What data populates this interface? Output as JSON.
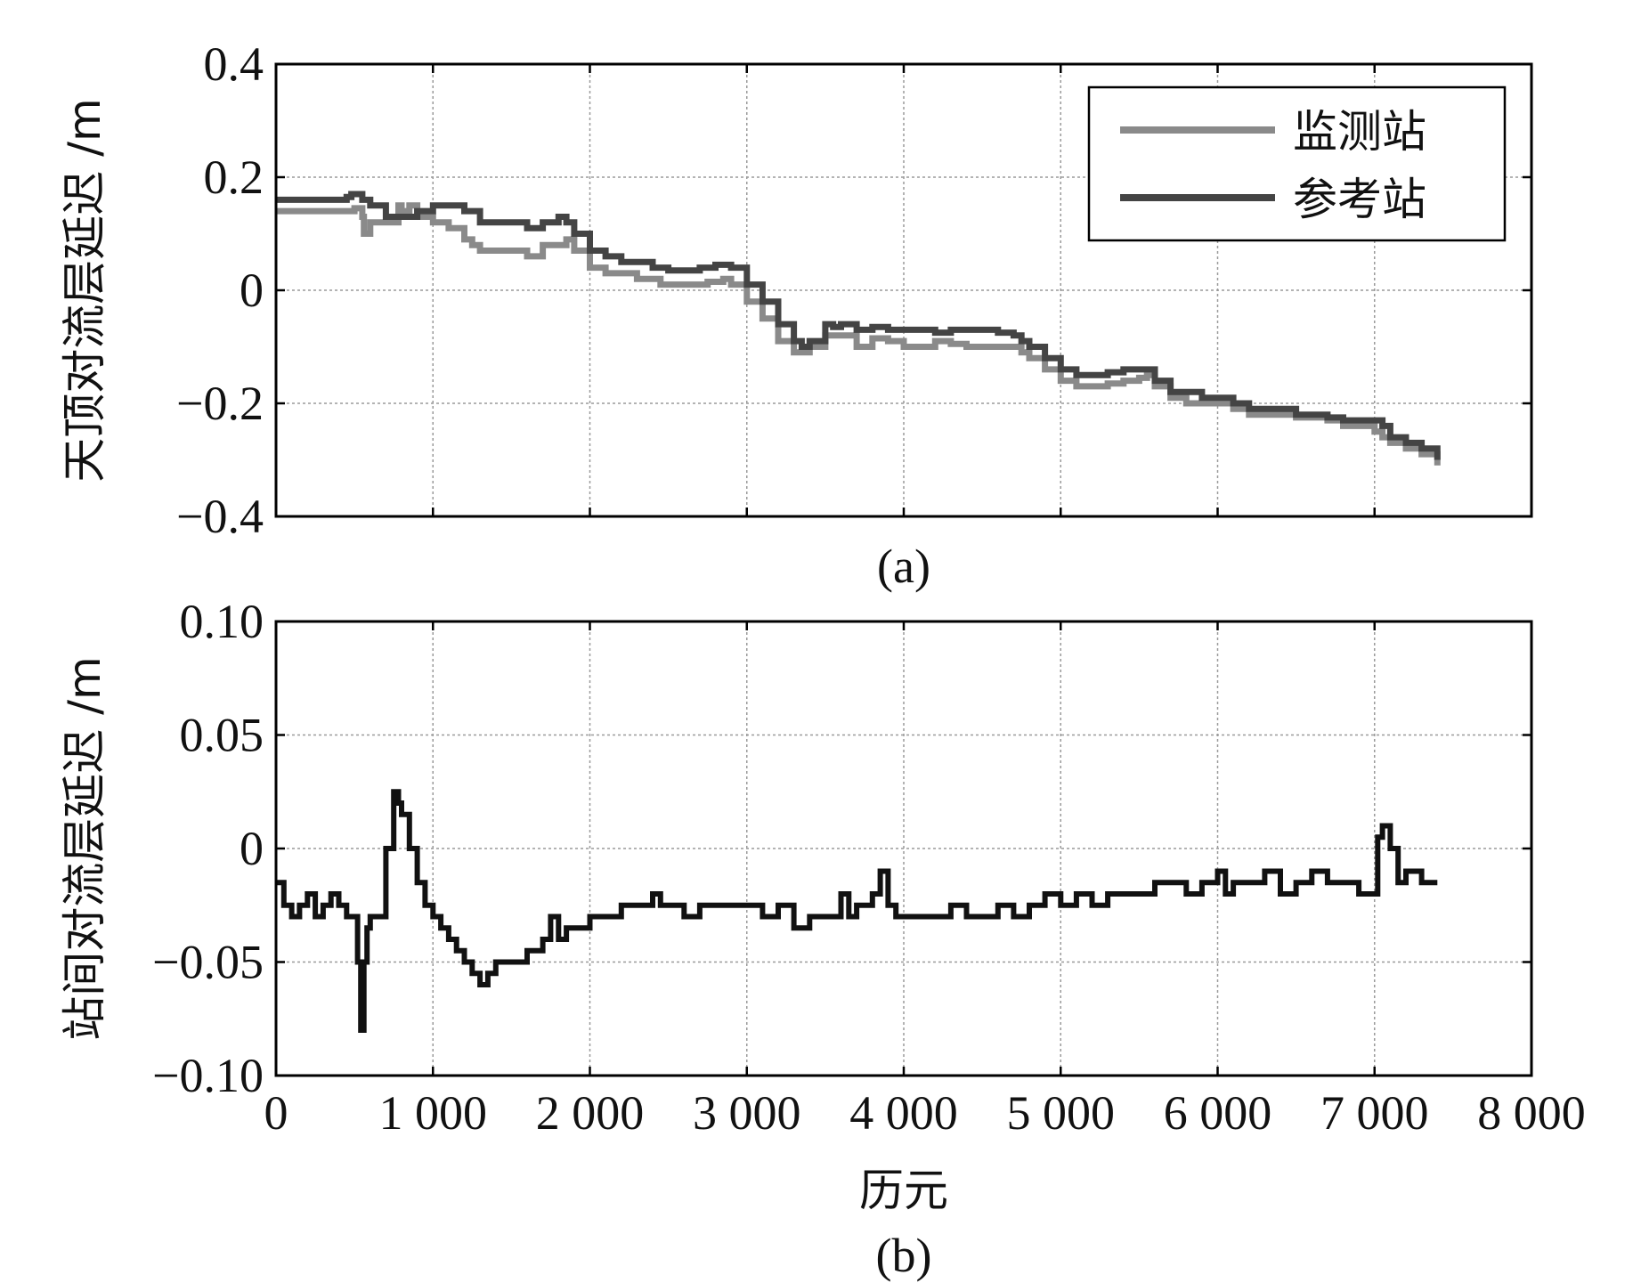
{
  "chart_data": [
    {
      "id": "a",
      "type": "line",
      "caption": "(a)",
      "ylabel": "天顶对流层延迟 /m",
      "xlabel": "",
      "xlim": [
        0,
        8000
      ],
      "ylim": [
        -0.4,
        0.4
      ],
      "xticks": [
        0,
        1000,
        2000,
        3000,
        4000,
        5000,
        6000,
        7000,
        8000
      ],
      "yticks": [
        0.4,
        0.2,
        0,
        -0.2,
        -0.4
      ],
      "ytick_labels": [
        "0.4",
        "0.2",
        "0",
        "−0.2",
        "−0.4"
      ],
      "grid": true,
      "legend_position": "top-right",
      "series": [
        {
          "name": "监测站",
          "color": "#8a8a8a",
          "x": [
            0,
            300,
            500,
            550,
            560,
            600,
            780,
            800,
            850,
            900,
            1000,
            1100,
            1200,
            1250,
            1300,
            1350,
            1500,
            1600,
            1700,
            1800,
            1850,
            1900,
            2000,
            2100,
            2300,
            2450,
            2500,
            2600,
            2750,
            2850,
            2900,
            3000,
            3100,
            3200,
            3300,
            3350,
            3400,
            3500,
            3600,
            3700,
            3800,
            3900,
            4000,
            4100,
            4200,
            4300,
            4400,
            4600,
            4700,
            4750,
            4800,
            4900,
            5000,
            5100,
            5200,
            5300,
            5400,
            5500,
            5550,
            5600,
            5700,
            5800,
            5900,
            6000,
            6100,
            6200,
            6300,
            6500,
            6600,
            6700,
            6800,
            6900,
            7000,
            7050,
            7100,
            7200,
            7300,
            7400
          ],
          "values": [
            0.14,
            0.14,
            0.145,
            0.13,
            0.1,
            0.12,
            0.15,
            0.14,
            0.15,
            0.13,
            0.12,
            0.11,
            0.09,
            0.08,
            0.07,
            0.07,
            0.07,
            0.06,
            0.08,
            0.08,
            0.09,
            0.07,
            0.04,
            0.03,
            0.02,
            0.01,
            0.01,
            0.01,
            0.015,
            0.02,
            0.01,
            -0.02,
            -0.05,
            -0.09,
            -0.11,
            -0.11,
            -0.1,
            -0.08,
            -0.08,
            -0.1,
            -0.085,
            -0.09,
            -0.1,
            -0.1,
            -0.09,
            -0.095,
            -0.1,
            -0.1,
            -0.1,
            -0.11,
            -0.12,
            -0.14,
            -0.16,
            -0.17,
            -0.17,
            -0.165,
            -0.16,
            -0.155,
            -0.15,
            -0.17,
            -0.19,
            -0.2,
            -0.2,
            -0.2,
            -0.21,
            -0.22,
            -0.22,
            -0.225,
            -0.225,
            -0.23,
            -0.24,
            -0.24,
            -0.25,
            -0.26,
            -0.27,
            -0.28,
            -0.29,
            -0.31
          ]
        },
        {
          "name": "参考站",
          "color": "#444444",
          "x": [
            0,
            300,
            450,
            480,
            550,
            600,
            700,
            800,
            900,
            1000,
            1200,
            1300,
            1400,
            1500,
            1600,
            1700,
            1800,
            1850,
            1900,
            2000,
            2100,
            2200,
            2300,
            2400,
            2500,
            2600,
            2700,
            2800,
            2900,
            3000,
            3100,
            3200,
            3300,
            3350,
            3400,
            3500,
            3550,
            3600,
            3700,
            3800,
            3900,
            4000,
            4100,
            4200,
            4300,
            4400,
            4500,
            4600,
            4700,
            4750,
            4800,
            4900,
            5000,
            5100,
            5200,
            5300,
            5400,
            5500,
            5550,
            5600,
            5700,
            5800,
            5900,
            6000,
            6100,
            6200,
            6300,
            6500,
            6600,
            6700,
            6800,
            6900,
            7000,
            7050,
            7100,
            7200,
            7300,
            7400
          ],
          "values": [
            0.16,
            0.16,
            0.165,
            0.17,
            0.16,
            0.15,
            0.13,
            0.13,
            0.14,
            0.15,
            0.14,
            0.12,
            0.12,
            0.12,
            0.11,
            0.12,
            0.13,
            0.12,
            0.1,
            0.07,
            0.06,
            0.05,
            0.05,
            0.04,
            0.035,
            0.035,
            0.04,
            0.045,
            0.04,
            0.01,
            -0.02,
            -0.06,
            -0.09,
            -0.1,
            -0.09,
            -0.06,
            -0.065,
            -0.06,
            -0.07,
            -0.065,
            -0.07,
            -0.07,
            -0.07,
            -0.075,
            -0.07,
            -0.07,
            -0.07,
            -0.075,
            -0.08,
            -0.09,
            -0.1,
            -0.12,
            -0.14,
            -0.15,
            -0.15,
            -0.145,
            -0.14,
            -0.14,
            -0.14,
            -0.16,
            -0.18,
            -0.18,
            -0.19,
            -0.19,
            -0.2,
            -0.21,
            -0.21,
            -0.22,
            -0.22,
            -0.225,
            -0.23,
            -0.23,
            -0.23,
            -0.24,
            -0.26,
            -0.27,
            -0.28,
            -0.3
          ]
        }
      ]
    },
    {
      "id": "b",
      "type": "line",
      "caption": "(b)",
      "ylabel": "站间对流层延迟 /m",
      "xlabel": "历元",
      "xlim": [
        0,
        8000
      ],
      "ylim": [
        -0.1,
        0.1
      ],
      "xticks": [
        0,
        1000,
        2000,
        3000,
        4000,
        5000,
        6000,
        7000,
        8000
      ],
      "xtick_labels": [
        "0",
        "1 000",
        "2 000",
        "3 000",
        "4 000",
        "5 000",
        "6 000",
        "7 000",
        "8 000"
      ],
      "yticks": [
        0.1,
        0.05,
        0,
        -0.05,
        -0.1
      ],
      "ytick_labels": [
        "0.10",
        "0.05",
        "0",
        "−0.05",
        "−0.10"
      ],
      "grid": true,
      "series": [
        {
          "name": "站间对流层延迟",
          "color": "#111111",
          "x": [
            0,
            50,
            100,
            150,
            200,
            250,
            300,
            350,
            400,
            450,
            500,
            520,
            540,
            560,
            580,
            600,
            650,
            700,
            750,
            780,
            800,
            850,
            900,
            950,
            1000,
            1050,
            1100,
            1150,
            1200,
            1250,
            1300,
            1350,
            1400,
            1500,
            1600,
            1700,
            1750,
            1800,
            1850,
            1900,
            2000,
            2100,
            2200,
            2300,
            2400,
            2450,
            2500,
            2600,
            2700,
            2800,
            2900,
            3000,
            3100,
            3200,
            3300,
            3400,
            3500,
            3600,
            3650,
            3700,
            3800,
            3850,
            3900,
            3950,
            4000,
            4100,
            4200,
            4300,
            4400,
            4500,
            4600,
            4700,
            4800,
            4900,
            5000,
            5100,
            5200,
            5300,
            5400,
            5500,
            5600,
            5700,
            5800,
            5900,
            6000,
            6050,
            6100,
            6200,
            6300,
            6400,
            6500,
            6600,
            6700,
            6800,
            6900,
            7000,
            7020,
            7050,
            7100,
            7150,
            7200,
            7300,
            7400
          ],
          "values": [
            -0.015,
            -0.025,
            -0.03,
            -0.025,
            -0.02,
            -0.03,
            -0.025,
            -0.02,
            -0.025,
            -0.03,
            -0.03,
            -0.05,
            -0.08,
            -0.05,
            -0.035,
            -0.03,
            -0.03,
            0.0,
            0.025,
            0.02,
            0.015,
            0.0,
            -0.015,
            -0.025,
            -0.03,
            -0.035,
            -0.04,
            -0.045,
            -0.05,
            -0.055,
            -0.06,
            -0.055,
            -0.05,
            -0.05,
            -0.045,
            -0.04,
            -0.03,
            -0.04,
            -0.035,
            -0.035,
            -0.03,
            -0.03,
            -0.025,
            -0.025,
            -0.02,
            -0.025,
            -0.025,
            -0.03,
            -0.025,
            -0.025,
            -0.025,
            -0.025,
            -0.03,
            -0.025,
            -0.035,
            -0.03,
            -0.03,
            -0.02,
            -0.03,
            -0.025,
            -0.02,
            -0.01,
            -0.025,
            -0.03,
            -0.03,
            -0.03,
            -0.03,
            -0.025,
            -0.03,
            -0.03,
            -0.025,
            -0.03,
            -0.025,
            -0.02,
            -0.025,
            -0.02,
            -0.025,
            -0.02,
            -0.02,
            -0.02,
            -0.015,
            -0.015,
            -0.02,
            -0.015,
            -0.01,
            -0.02,
            -0.015,
            -0.015,
            -0.01,
            -0.02,
            -0.015,
            -0.01,
            -0.015,
            -0.015,
            -0.02,
            -0.02,
            0.005,
            0.01,
            0.0,
            -0.015,
            -0.01,
            -0.015,
            -0.015
          ]
        }
      ]
    }
  ],
  "legend": {
    "items": [
      {
        "label": "监测站",
        "color": "#8a8a8a"
      },
      {
        "label": "参考站",
        "color": "#444444"
      }
    ]
  }
}
